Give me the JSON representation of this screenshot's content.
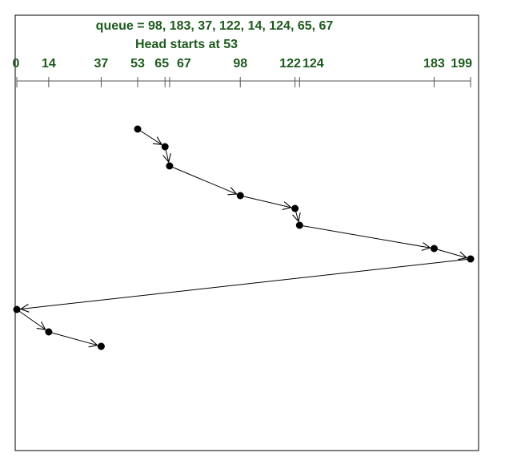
{
  "title": {
    "line1": "queue = 98, 183, 37, 122, 14, 124, 65, 67",
    "line2": "Head starts at 53",
    "color": "#1e5a1e"
  },
  "axis_color": "#1e5a1e",
  "chart_data": {
    "type": "line",
    "description_of_encoding": "",
    "x_axis": {
      "ticks": [
        0,
        14,
        37,
        53,
        65,
        67,
        98,
        122,
        124,
        183,
        199
      ],
      "range": [
        0,
        199
      ]
    },
    "path": [
      53,
      65,
      67,
      98,
      122,
      124,
      183,
      199,
      0,
      14,
      37
    ]
  }
}
